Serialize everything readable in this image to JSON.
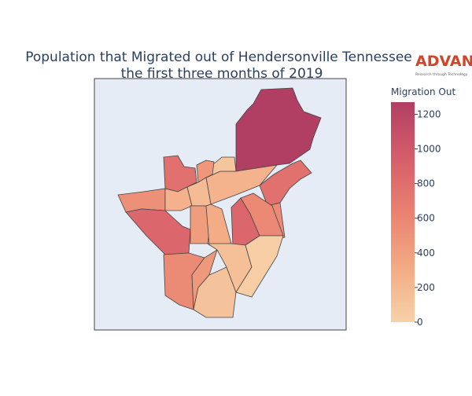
{
  "chart_data": {
    "type": "choropleth",
    "title_lines": [
      "Population that Migrated out of Hendersonville Tennessee",
      "the first three months of 2019"
    ],
    "colorbar_title": "Migration Out",
    "logo": "ADVAN",
    "logo_tagline": "Research through Technology",
    "clim": [
      0,
      1270
    ],
    "cticks": [
      0,
      200,
      400,
      600,
      800,
      1000,
      1200
    ],
    "colorscale": [
      "#f6d2a9",
      "#f3aa84",
      "#ea8171",
      "#d55d6a",
      "#b13f64"
    ],
    "values": [
      1270,
      780,
      560,
      250,
      100,
      470,
      780,
      520,
      260,
      180,
      860,
      420,
      300,
      860,
      570,
      560,
      450,
      120,
      150,
      40
    ]
  }
}
